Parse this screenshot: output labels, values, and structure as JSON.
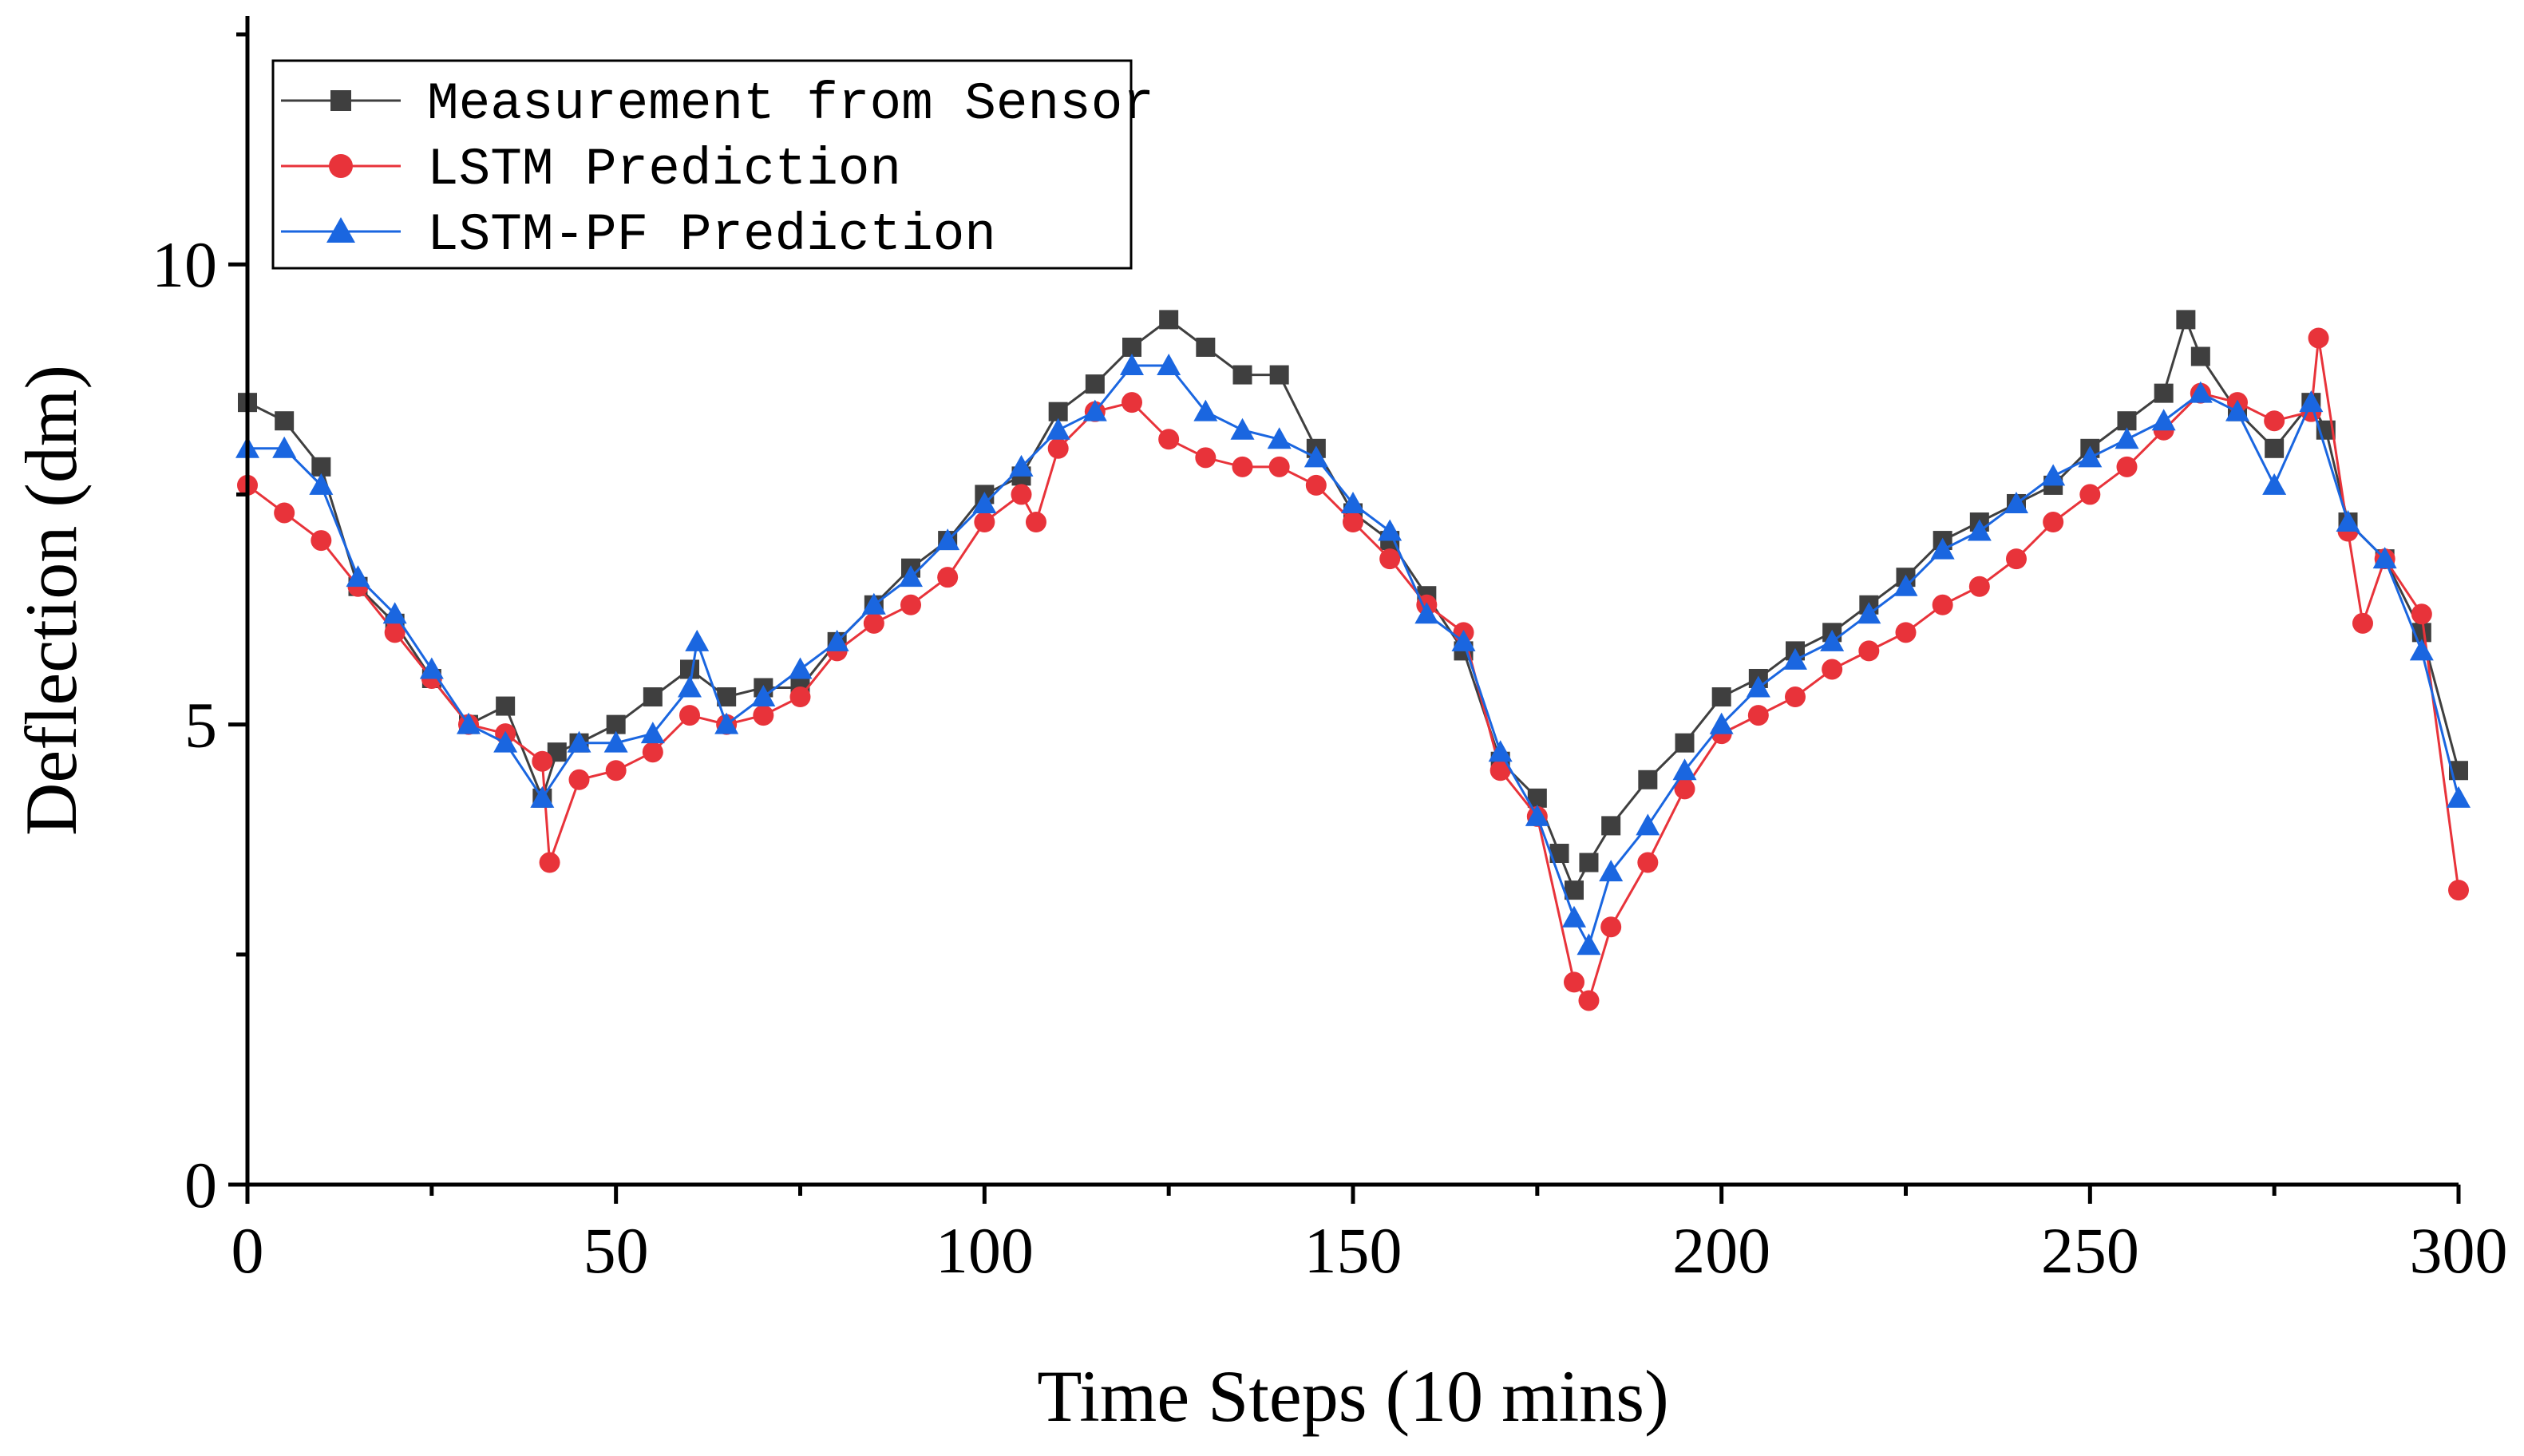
{
  "chart_data": {
    "type": "line",
    "title": "",
    "xlabel": "Time Steps (10 mins)",
    "ylabel": "Deflection (dm)",
    "xlim": [
      0,
      300
    ],
    "ylim": [
      0,
      12.7
    ],
    "xticks": [
      0,
      50,
      100,
      150,
      200,
      250,
      300
    ],
    "yticks": [
      0,
      5,
      10
    ],
    "grid": false,
    "legend_position": "top-left",
    "series": [
      {
        "name": "Measurement from Sensor",
        "color": "#3f3f3f",
        "marker": "square",
        "x": [
          0,
          5,
          10,
          15,
          20,
          25,
          30,
          35,
          40,
          42,
          45,
          50,
          55,
          60,
          65,
          70,
          75,
          80,
          85,
          90,
          95,
          100,
          105,
          110,
          115,
          120,
          125,
          130,
          135,
          140,
          145,
          150,
          155,
          160,
          165,
          170,
          175,
          178,
          180,
          182,
          185,
          190,
          195,
          200,
          205,
          210,
          215,
          220,
          225,
          230,
          235,
          240,
          245,
          250,
          255,
          260,
          263,
          265,
          270,
          275,
          280,
          282,
          285,
          290,
          295,
          300
        ],
        "values": [
          8.5,
          8.3,
          7.8,
          6.5,
          6.1,
          5.5,
          5.0,
          5.2,
          4.2,
          4.7,
          4.8,
          5.0,
          5.3,
          5.6,
          5.3,
          5.4,
          5.4,
          5.9,
          6.3,
          6.7,
          7.0,
          7.5,
          7.7,
          8.4,
          8.7,
          9.1,
          9.4,
          9.1,
          8.8,
          8.8,
          8.0,
          7.3,
          7.0,
          6.4,
          5.8,
          4.6,
          4.2,
          3.6,
          3.2,
          3.5,
          3.9,
          4.4,
          4.8,
          5.3,
          5.5,
          5.8,
          6.0,
          6.3,
          6.6,
          7.0,
          7.2,
          7.4,
          7.6,
          8.0,
          8.3,
          8.6,
          9.4,
          9.0,
          8.4,
          8.0,
          8.5,
          8.2,
          7.2,
          6.8,
          6.0,
          4.5
        ]
      },
      {
        "name": "LSTM Prediction",
        "color": "#e8333a",
        "marker": "circle",
        "x": [
          0,
          5,
          10,
          15,
          20,
          25,
          30,
          35,
          40,
          41,
          45,
          50,
          55,
          60,
          65,
          70,
          75,
          80,
          85,
          90,
          95,
          100,
          105,
          107,
          110,
          115,
          120,
          125,
          130,
          135,
          140,
          145,
          150,
          155,
          160,
          165,
          170,
          175,
          180,
          182,
          185,
          190,
          195,
          200,
          205,
          210,
          215,
          220,
          225,
          230,
          235,
          240,
          245,
          250,
          255,
          260,
          265,
          270,
          275,
          280,
          281,
          285,
          287,
          290,
          295,
          300
        ],
        "values": [
          7.6,
          7.3,
          7.0,
          6.5,
          6.0,
          5.5,
          5.0,
          4.9,
          4.6,
          3.5,
          4.4,
          4.5,
          4.7,
          5.1,
          5.0,
          5.1,
          5.3,
          5.8,
          6.1,
          6.3,
          6.6,
          7.2,
          7.5,
          7.2,
          8.0,
          8.4,
          8.5,
          8.1,
          7.9,
          7.8,
          7.8,
          7.6,
          7.2,
          6.8,
          6.3,
          6.0,
          4.5,
          4.0,
          2.2,
          2.0,
          2.8,
          3.5,
          4.3,
          4.9,
          5.1,
          5.3,
          5.6,
          5.8,
          6.0,
          6.3,
          6.5,
          6.8,
          7.2,
          7.5,
          7.8,
          8.2,
          8.6,
          8.5,
          8.3,
          8.4,
          9.2,
          7.1,
          6.1,
          6.8,
          6.2,
          3.2
        ]
      },
      {
        "name": "LSTM-PF Prediction",
        "color": "#1a66e0",
        "marker": "triangle",
        "x": [
          0,
          5,
          10,
          15,
          20,
          25,
          30,
          35,
          40,
          45,
          50,
          55,
          60,
          61,
          65,
          70,
          75,
          80,
          85,
          90,
          95,
          100,
          105,
          110,
          115,
          120,
          125,
          130,
          135,
          140,
          145,
          150,
          155,
          160,
          165,
          170,
          175,
          180,
          182,
          185,
          190,
          195,
          200,
          205,
          210,
          215,
          220,
          225,
          230,
          235,
          240,
          245,
          250,
          255,
          260,
          265,
          270,
          275,
          280,
          285,
          290,
          295,
          300
        ],
        "values": [
          8.0,
          8.0,
          7.6,
          6.6,
          6.2,
          5.6,
          5.0,
          4.8,
          4.2,
          4.8,
          4.8,
          4.9,
          5.4,
          5.9,
          5.0,
          5.3,
          5.6,
          5.9,
          6.3,
          6.6,
          7.0,
          7.4,
          7.8,
          8.2,
          8.4,
          8.9,
          8.9,
          8.4,
          8.2,
          8.1,
          7.9,
          7.4,
          7.1,
          6.2,
          5.9,
          4.7,
          4.0,
          2.9,
          2.6,
          3.4,
          3.9,
          4.5,
          5.0,
          5.4,
          5.7,
          5.9,
          6.2,
          6.5,
          6.9,
          7.1,
          7.4,
          7.7,
          7.9,
          8.1,
          8.3,
          8.6,
          8.4,
          7.6,
          8.5,
          7.2,
          6.8,
          5.8,
          4.2
        ]
      }
    ]
  }
}
